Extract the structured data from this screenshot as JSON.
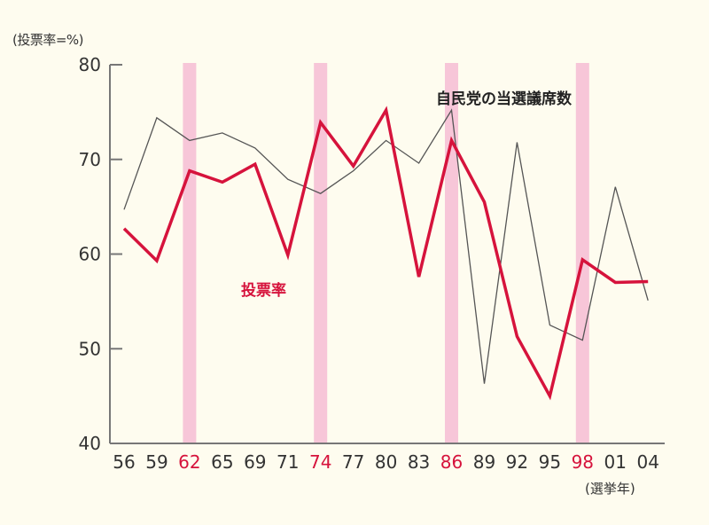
{
  "chart_data": {
    "type": "line",
    "title": "",
    "ylabel": "(投票率=%)",
    "xlabel": "(選挙年)",
    "ylim": [
      40,
      80
    ],
    "yticks": [
      40,
      50,
      60,
      70,
      80
    ],
    "grid": false,
    "categories": [
      "56",
      "59",
      "62",
      "65",
      "69",
      "71",
      "74",
      "77",
      "80",
      "83",
      "86",
      "89",
      "92",
      "95",
      "98",
      "01",
      "04"
    ],
    "highlighted_categories": [
      "62",
      "74",
      "86",
      "98"
    ],
    "series": [
      {
        "name": "投票率",
        "color": "#d6133c",
        "values": [
          62.7,
          59.3,
          68.8,
          67.6,
          69.5,
          59.9,
          73.9,
          69.3,
          75.2,
          57.6,
          72.0,
          65.5,
          51.3,
          45.0,
          59.4,
          57.0,
          57.1
        ]
      },
      {
        "name": "自民党の当選議席数",
        "color": "#555555",
        "values": [
          64.7,
          74.4,
          72.0,
          72.8,
          71.2,
          67.9,
          66.4,
          68.8,
          72.0,
          69.6,
          75.2,
          46.3,
          71.8,
          52.5,
          50.9,
          67.1,
          55.1
        ]
      }
    ],
    "annotations": [
      {
        "text": "自民党の当選議席数",
        "series": "自民党の当選議席数"
      },
      {
        "text": "投票率",
        "series": "投票率"
      }
    ]
  },
  "labels": {
    "y_unit": "(投票率=%)",
    "x_unit": "(選挙年)",
    "seats_series": "自民党の当選議席数",
    "turnout_series": "投票率"
  },
  "colors": {
    "background": "#fefcef",
    "turnout": "#d6133c",
    "seats": "#555555",
    "highlight_band": "#f7c6d8",
    "highlight_tick": "#d6133c",
    "axis": "#777777",
    "tick_text": "#333333"
  }
}
